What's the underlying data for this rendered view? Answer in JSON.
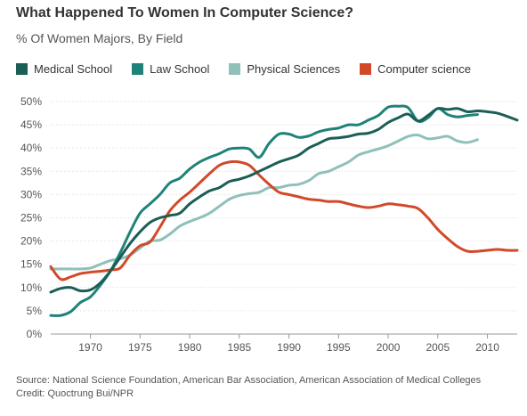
{
  "header": {
    "title": "What Happened To Women In Computer Science?",
    "subtitle": "% Of Women Majors, By Field"
  },
  "footer": {
    "source": "Source: National Science Foundation, American Bar Association, American Association of Medical Colleges",
    "credit": "Credit: Quoctrung Bui/NPR"
  },
  "chart_data": {
    "type": "line",
    "title": "What Happened To Women In Computer Science?",
    "subtitle": "% Of Women Majors, By Field",
    "xlabel": "",
    "ylabel": "",
    "xlim": [
      1966,
      2013
    ],
    "ylim": [
      0,
      50
    ],
    "x_ticks": [
      1970,
      1975,
      1980,
      1985,
      1990,
      1995,
      2000,
      2005,
      2010
    ],
    "y_ticks": [
      0,
      5,
      10,
      15,
      20,
      25,
      30,
      35,
      40,
      45,
      50
    ],
    "y_tick_labels": [
      "0%",
      "5%",
      "10%",
      "15%",
      "20%",
      "25%",
      "30%",
      "35%",
      "40%",
      "45%",
      "50%"
    ],
    "grid": true,
    "legend_position": "top-left",
    "series": [
      {
        "name": "Medical School",
        "color": "#1b5e55",
        "points": [
          [
            1966,
            9
          ],
          [
            1967,
            9.8
          ],
          [
            1968,
            10
          ],
          [
            1969,
            9.3
          ],
          [
            1970,
            9.5
          ],
          [
            1971,
            11
          ],
          [
            1972,
            13.5
          ],
          [
            1973,
            16.5
          ],
          [
            1974,
            19.5
          ],
          [
            1975,
            22
          ],
          [
            1976,
            24
          ],
          [
            1977,
            25
          ],
          [
            1978,
            25.5
          ],
          [
            1979,
            26
          ],
          [
            1980,
            28
          ],
          [
            1981,
            29.5
          ],
          [
            1982,
            30.8
          ],
          [
            1983,
            31.5
          ],
          [
            1984,
            32.8
          ],
          [
            1985,
            33.3
          ],
          [
            1986,
            34
          ],
          [
            1987,
            35
          ],
          [
            1988,
            36
          ],
          [
            1989,
            37
          ],
          [
            1990,
            37.7
          ],
          [
            1991,
            38.5
          ],
          [
            1992,
            40
          ],
          [
            1993,
            41
          ],
          [
            1994,
            42
          ],
          [
            1995,
            42.2
          ],
          [
            1996,
            42.5
          ],
          [
            1997,
            43
          ],
          [
            1998,
            43.2
          ],
          [
            1999,
            44
          ],
          [
            2000,
            45.5
          ],
          [
            2001,
            46.5
          ],
          [
            2002,
            47.3
          ],
          [
            2003,
            45.8
          ],
          [
            2004,
            47
          ],
          [
            2005,
            48.5
          ],
          [
            2006,
            48.3
          ],
          [
            2007,
            48.5
          ],
          [
            2008,
            47.8
          ],
          [
            2009,
            48
          ],
          [
            2010,
            47.8
          ],
          [
            2011,
            47.5
          ],
          [
            2012,
            46.8
          ],
          [
            2013,
            46
          ]
        ]
      },
      {
        "name": "Law School",
        "color": "#1f8278",
        "points": [
          [
            1966,
            4
          ],
          [
            1967,
            4
          ],
          [
            1968,
            4.8
          ],
          [
            1969,
            6.8
          ],
          [
            1970,
            8
          ],
          [
            1971,
            10.5
          ],
          [
            1972,
            13.5
          ],
          [
            1973,
            17.5
          ],
          [
            1974,
            22
          ],
          [
            1975,
            26
          ],
          [
            1976,
            28
          ],
          [
            1977,
            30
          ],
          [
            1978,
            32.5
          ],
          [
            1979,
            33.5
          ],
          [
            1980,
            35.5
          ],
          [
            1981,
            37
          ],
          [
            1982,
            38
          ],
          [
            1983,
            38.8
          ],
          [
            1984,
            39.8
          ],
          [
            1985,
            40
          ],
          [
            1986,
            39.8
          ],
          [
            1987,
            38
          ],
          [
            1988,
            41
          ],
          [
            1989,
            43
          ],
          [
            1990,
            43
          ],
          [
            1991,
            42.3
          ],
          [
            1992,
            42.6
          ],
          [
            1993,
            43.5
          ],
          [
            1994,
            44
          ],
          [
            1995,
            44.3
          ],
          [
            1996,
            45
          ],
          [
            1997,
            45
          ],
          [
            1998,
            46
          ],
          [
            1999,
            47
          ],
          [
            2000,
            48.8
          ],
          [
            2001,
            49
          ],
          [
            2002,
            48.7
          ],
          [
            2003,
            45.8
          ],
          [
            2004,
            46.5
          ],
          [
            2005,
            48.5
          ],
          [
            2006,
            47.2
          ],
          [
            2007,
            46.7
          ],
          [
            2008,
            47
          ],
          [
            2009,
            47.2
          ]
        ]
      },
      {
        "name": "Physical Sciences",
        "color": "#8fc0ba",
        "points": [
          [
            1966,
            14
          ],
          [
            1967,
            14
          ],
          [
            1968,
            14
          ],
          [
            1969,
            14
          ],
          [
            1970,
            14.2
          ],
          [
            1971,
            15
          ],
          [
            1972,
            15.8
          ],
          [
            1973,
            16.2
          ],
          [
            1974,
            17
          ],
          [
            1975,
            18.5
          ],
          [
            1976,
            20
          ],
          [
            1977,
            20.2
          ],
          [
            1978,
            21.5
          ],
          [
            1979,
            23.2
          ],
          [
            1980,
            24.2
          ],
          [
            1981,
            25
          ],
          [
            1982,
            26
          ],
          [
            1983,
            27.5
          ],
          [
            1984,
            29
          ],
          [
            1985,
            29.8
          ],
          [
            1986,
            30.2
          ],
          [
            1987,
            30.5
          ],
          [
            1988,
            31.5
          ],
          [
            1989,
            31.5
          ],
          [
            1990,
            32
          ],
          [
            1991,
            32.2
          ],
          [
            1992,
            33
          ],
          [
            1993,
            34.5
          ],
          [
            1994,
            35
          ],
          [
            1995,
            36
          ],
          [
            1996,
            37
          ],
          [
            1997,
            38.5
          ],
          [
            1998,
            39.2
          ],
          [
            1999,
            39.8
          ],
          [
            2000,
            40.5
          ],
          [
            2001,
            41.5
          ],
          [
            2002,
            42.5
          ],
          [
            2003,
            42.8
          ],
          [
            2004,
            42
          ],
          [
            2005,
            42.2
          ],
          [
            2006,
            42.5
          ],
          [
            2007,
            41.5
          ],
          [
            2008,
            41.2
          ],
          [
            2009,
            41.8
          ]
        ]
      },
      {
        "name": "Computer science",
        "color": "#d2492a",
        "points": [
          [
            1966,
            14.5
          ],
          [
            1967,
            11.8
          ],
          [
            1968,
            12.3
          ],
          [
            1969,
            13
          ],
          [
            1970,
            13.3
          ],
          [
            1971,
            13.5
          ],
          [
            1972,
            13.8
          ],
          [
            1973,
            14.2
          ],
          [
            1974,
            17
          ],
          [
            1975,
            19
          ],
          [
            1976,
            19.8
          ],
          [
            1977,
            23
          ],
          [
            1978,
            26.5
          ],
          [
            1979,
            28.8
          ],
          [
            1980,
            30.5
          ],
          [
            1981,
            32.5
          ],
          [
            1982,
            34.5
          ],
          [
            1983,
            36.3
          ],
          [
            1984,
            37
          ],
          [
            1985,
            37
          ],
          [
            1986,
            36.3
          ],
          [
            1987,
            34.2
          ],
          [
            1988,
            32.2
          ],
          [
            1989,
            30.5
          ],
          [
            1990,
            30
          ],
          [
            1991,
            29.5
          ],
          [
            1992,
            29
          ],
          [
            1993,
            28.8
          ],
          [
            1994,
            28.5
          ],
          [
            1995,
            28.5
          ],
          [
            1996,
            28
          ],
          [
            1997,
            27.5
          ],
          [
            1998,
            27.2
          ],
          [
            1999,
            27.5
          ],
          [
            2000,
            28
          ],
          [
            2001,
            27.8
          ],
          [
            2002,
            27.5
          ],
          [
            2003,
            27
          ],
          [
            2004,
            25
          ],
          [
            2005,
            22.5
          ],
          [
            2006,
            20.5
          ],
          [
            2007,
            18.8
          ],
          [
            2008,
            17.8
          ],
          [
            2009,
            17.8
          ],
          [
            2010,
            18
          ],
          [
            2011,
            18.2
          ],
          [
            2012,
            18
          ],
          [
            2013,
            18
          ]
        ]
      }
    ]
  }
}
